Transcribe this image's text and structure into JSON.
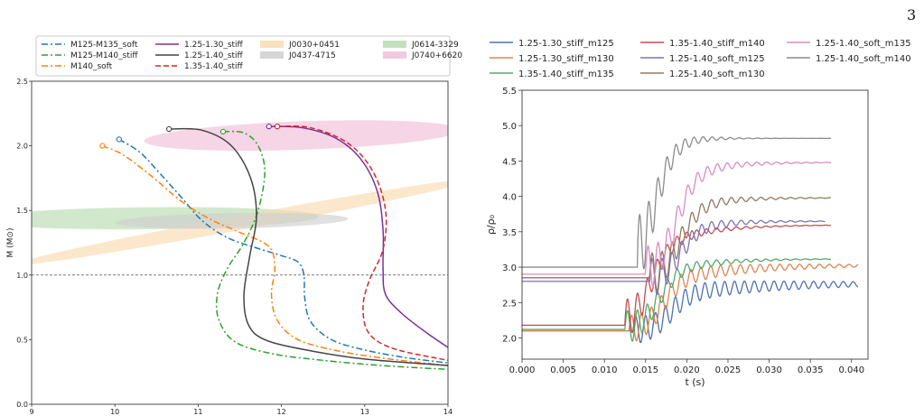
{
  "page_number": "3",
  "chart_data": [
    {
      "type": "line",
      "xlabel": "",
      "ylabel": "M (M⊙)",
      "xlim": [
        9,
        14
      ],
      "ylim": [
        0,
        2.5
      ],
      "xticks": [
        "9",
        "10",
        "11",
        "12",
        "13",
        "14"
      ],
      "yticks": [
        "0.0",
        "0.5",
        "1.0",
        "1.5",
        "2.0",
        "2.5"
      ],
      "reference_line": {
        "y": 1.0,
        "style": "dashed"
      },
      "legend_columns": [
        [
          "M125-M135_soft",
          "M125-M140_stiff",
          "M140_soft"
        ],
        [
          "1.25-1.30_stiff",
          "1.25-1.40_stiff",
          "1.35-1.40_stiff"
        ],
        [
          "J0030+0451",
          "J0437-4715"
        ],
        [
          "J0614-3329",
          "J0740+6620"
        ]
      ],
      "series": [
        {
          "name": "M125-M135_soft",
          "color": "#1f77b4",
          "style": "dashdot",
          "points": [
            [
              10.05,
              2.05
            ],
            [
              10.3,
              1.95
            ],
            [
              10.55,
              1.78
            ],
            [
              10.8,
              1.6
            ],
            [
              11.05,
              1.42
            ],
            [
              11.35,
              1.29
            ],
            [
              11.7,
              1.21
            ],
            [
              12.0,
              1.15
            ],
            [
              12.2,
              1.1
            ],
            [
              12.27,
              1.0
            ],
            [
              12.28,
              0.82
            ],
            [
              12.35,
              0.64
            ],
            [
              12.6,
              0.5
            ],
            [
              13.0,
              0.42
            ],
            [
              13.5,
              0.36
            ],
            [
              14.0,
              0.32
            ]
          ]
        },
        {
          "name": "M125-M140_stiff",
          "color": "#2ca02c",
          "style": "dashdot",
          "points": [
            [
              11.3,
              2.11
            ],
            [
              11.55,
              2.1
            ],
            [
              11.72,
              2.0
            ],
            [
              11.8,
              1.8
            ],
            [
              11.72,
              1.5
            ],
            [
              11.55,
              1.25
            ],
            [
              11.35,
              1.05
            ],
            [
              11.23,
              0.85
            ],
            [
              11.25,
              0.65
            ],
            [
              11.45,
              0.48
            ],
            [
              11.9,
              0.39
            ],
            [
              12.5,
              0.34
            ],
            [
              13.2,
              0.3
            ],
            [
              14.0,
              0.27
            ]
          ]
        },
        {
          "name": "M140_soft",
          "color": "#ff7f0e",
          "style": "dashdot",
          "points": [
            [
              9.85,
              2.0
            ],
            [
              10.1,
              1.93
            ],
            [
              10.45,
              1.76
            ],
            [
              10.8,
              1.57
            ],
            [
              11.15,
              1.43
            ],
            [
              11.5,
              1.33
            ],
            [
              11.85,
              1.22
            ],
            [
              11.92,
              1.05
            ],
            [
              11.88,
              0.85
            ],
            [
              11.95,
              0.65
            ],
            [
              12.2,
              0.5
            ],
            [
              12.7,
              0.41
            ],
            [
              13.3,
              0.35
            ],
            [
              14.0,
              0.3
            ]
          ]
        },
        {
          "name": "1.25-1.30_stiff",
          "color": "#7b2f9e",
          "style": "solid",
          "points": [
            [
              11.85,
              2.15
            ],
            [
              12.25,
              2.14
            ],
            [
              12.65,
              2.06
            ],
            [
              12.95,
              1.9
            ],
            [
              13.15,
              1.65
            ],
            [
              13.22,
              1.35
            ],
            [
              13.22,
              1.05
            ],
            [
              13.25,
              0.85
            ],
            [
              13.45,
              0.7
            ],
            [
              13.75,
              0.55
            ],
            [
              14.0,
              0.44
            ]
          ]
        },
        {
          "name": "1.25-1.40_stiff",
          "color": "#444444",
          "style": "solid",
          "points": [
            [
              10.65,
              2.13
            ],
            [
              11.05,
              2.12
            ],
            [
              11.4,
              2.0
            ],
            [
              11.63,
              1.75
            ],
            [
              11.7,
              1.45
            ],
            [
              11.62,
              1.15
            ],
            [
              11.55,
              0.85
            ],
            [
              11.6,
              0.62
            ],
            [
              11.8,
              0.5
            ],
            [
              12.3,
              0.42
            ],
            [
              13.0,
              0.35
            ],
            [
              14.0,
              0.3
            ]
          ]
        },
        {
          "name": "1.35-1.40_stiff",
          "color": "#d62728",
          "style": "dashed",
          "points": [
            [
              11.95,
              2.15
            ],
            [
              12.35,
              2.14
            ],
            [
              12.8,
              2.02
            ],
            [
              13.1,
              1.8
            ],
            [
              13.25,
              1.5
            ],
            [
              13.22,
              1.2
            ],
            [
              13.05,
              0.95
            ],
            [
              12.98,
              0.75
            ],
            [
              13.05,
              0.55
            ],
            [
              13.35,
              0.43
            ],
            [
              14.0,
              0.34
            ]
          ]
        }
      ],
      "markers": [
        {
          "x": 10.05,
          "y": 2.05,
          "color": "#1f77b4"
        },
        {
          "x": 11.3,
          "y": 2.11,
          "color": "#2ca02c"
        },
        {
          "x": 9.85,
          "y": 2.0,
          "color": "#ff7f0e"
        },
        {
          "x": 11.85,
          "y": 2.15,
          "color": "#7b2f9e"
        },
        {
          "x": 10.65,
          "y": 2.13,
          "color": "#444444"
        },
        {
          "x": 11.95,
          "y": 2.15,
          "color": "#d62728"
        }
      ],
      "constraints": [
        {
          "name": "J0614-3329",
          "color": "#b9dcb0",
          "cx": 10.4,
          "cy": 1.44,
          "rx": 2.05,
          "ry": 0.085,
          "angle_deg": -0.6
        },
        {
          "name": "J0030+0451",
          "color": "#f9dcb1",
          "cx": 11.55,
          "cy": 1.41,
          "rx": 2.8,
          "ry": 0.055,
          "angle_deg": -10.5
        },
        {
          "name": "J0437-4715",
          "color": "#cfcfcf",
          "cx": 11.4,
          "cy": 1.42,
          "rx": 1.4,
          "ry": 0.06,
          "angle_deg": -1
        },
        {
          "name": "J0740+6620",
          "color": "#efbfd8",
          "cx": 12.25,
          "cy": 2.08,
          "rx": 1.9,
          "ry": 0.11,
          "angle_deg": -2
        }
      ]
    },
    {
      "type": "line",
      "xlabel": "t (s)",
      "ylabel": "ρ/ρ₀",
      "xlim": [
        0,
        0.042
      ],
      "ylim": [
        1.7,
        5.5
      ],
      "xticks": [
        "0.000",
        "0.005",
        "0.010",
        "0.015",
        "0.020",
        "0.025",
        "0.030",
        "0.035",
        "0.040"
      ],
      "yticks": [
        "2.0",
        "2.5",
        "3.0",
        "3.5",
        "4.0",
        "4.5",
        "5.0",
        "5.5"
      ],
      "legend_columns": [
        [
          "1.25-1.30_stiff_m125",
          "1.25-1.30_stiff_m130",
          "1.35-1.40_stiff_m135"
        ],
        [
          "1.35-1.40_stiff_m140",
          "1.25-1.40_soft_m125",
          "1.25-1.40_soft_m130"
        ],
        [
          "1.25-1.40_soft_m135",
          "1.25-1.40_soft_m140"
        ]
      ],
      "series": [
        {
          "name": "1.25-1.30_stiff_m125",
          "color": "#4c72b0",
          "y0": 2.1,
          "t_start": 0.0135,
          "t_rise": 0.018,
          "final": 2.77,
          "amp": 0.2,
          "period": 0.0012,
          "damp": 0.016,
          "t_end": 0.0408,
          "growth": 0.009
        },
        {
          "name": "1.25-1.30_stiff_m130",
          "color": "#dd8452",
          "y0": 2.1,
          "t_start": 0.013,
          "t_rise": 0.017,
          "final": 3.03,
          "amp": 0.2,
          "period": 0.0012,
          "damp": 0.012,
          "t_end": 0.0408,
          "growth": 0.008
        },
        {
          "name": "1.35-1.40_stiff_m135",
          "color": "#55a868",
          "y0": 2.12,
          "t_start": 0.0125,
          "t_rise": 0.0165,
          "final": 3.12,
          "amp": 0.25,
          "period": 0.0012,
          "damp": 0.006,
          "t_end": 0.0375,
          "growth": 0.006
        },
        {
          "name": "1.35-1.40_stiff_m140",
          "color": "#c44e52",
          "y0": 2.18,
          "t_start": 0.0125,
          "t_rise": 0.0155,
          "final": 3.6,
          "amp": 0.3,
          "period": 0.0012,
          "damp": 0.005,
          "t_end": 0.0375,
          "growth": 0.006
        },
        {
          "name": "1.25-1.40_soft_m125",
          "color": "#8172b3",
          "y0": 2.8,
          "t_start": 0.0155,
          "t_rise": 0.019,
          "final": 3.65,
          "amp": 0.3,
          "period": 0.0012,
          "damp": 0.005,
          "t_end": 0.0368,
          "growth": 0.004
        },
        {
          "name": "1.25-1.40_soft_m130",
          "color": "#937860",
          "y0": 2.85,
          "t_start": 0.0155,
          "t_rise": 0.019,
          "final": 3.98,
          "amp": 0.32,
          "period": 0.0012,
          "damp": 0.005,
          "t_end": 0.0375,
          "growth": 0.004
        },
        {
          "name": "1.25-1.40_soft_m135",
          "color": "#da8bc3",
          "y0": 2.9,
          "t_start": 0.015,
          "t_rise": 0.0185,
          "final": 4.48,
          "amp": 0.35,
          "period": 0.0012,
          "damp": 0.005,
          "t_end": 0.0375,
          "growth": 0.004
        },
        {
          "name": "1.25-1.40_soft_m140",
          "color": "#8c8c8c",
          "y0": 3.0,
          "t_start": 0.014,
          "t_rise": 0.016,
          "final": 4.82,
          "amp": 0.55,
          "period": 0.0011,
          "damp": 0.003,
          "t_end": 0.0375,
          "growth": 0.0015
        }
      ]
    }
  ]
}
